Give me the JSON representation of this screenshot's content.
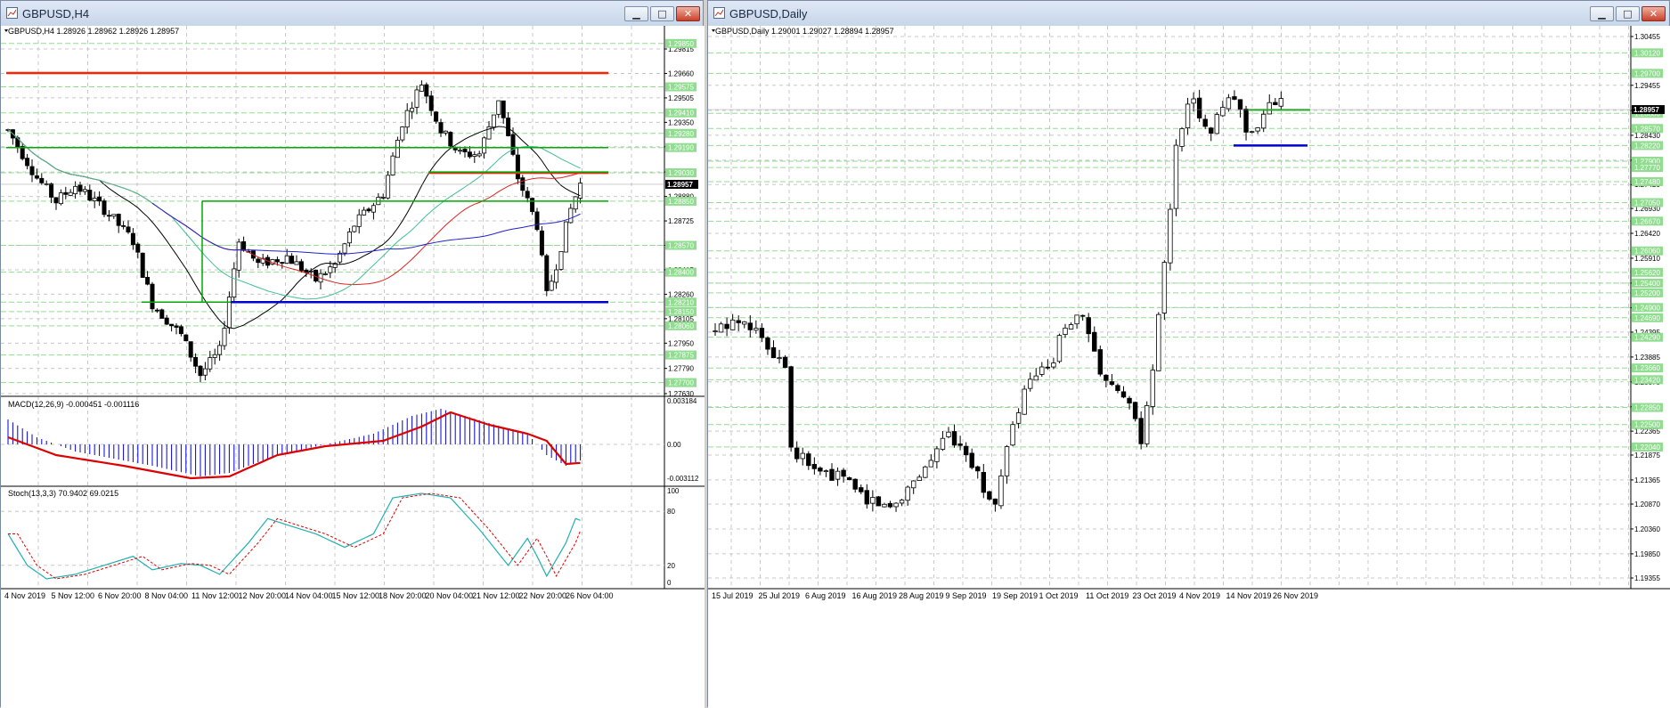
{
  "colors": {
    "up_candle": "#ffffff",
    "down_candle": "#000000",
    "grid": "#c8c8c8",
    "level_line": "#90dd90",
    "resistance": "#ff2200",
    "support": "#0000cc",
    "green_line": "#00aa00",
    "macd_signal": "#dd0000",
    "macd_hist": "#0000dd",
    "stoch_main": "#20b0b0",
    "stoch_signal": "#dd0000"
  },
  "left": {
    "title": "GBPUSD,H4",
    "info": "GBPUSD,H4  1.28926 1.28962 1.28926 1.28957",
    "macd_label": "MACD(12,26,9) -0.000451 -0.001116",
    "stoch_label": "Stoch(13,3,3) 70.9402 69.0215",
    "current_price": "1.28957",
    "price_ticks": [
      "1.29815",
      "1.29660",
      "1.29505",
      "1.29350",
      "1.29195",
      "1.29035",
      "1.28880",
      "1.28725",
      "1.28570",
      "1.28415",
      "1.28260",
      "1.28105",
      "1.27950",
      "1.27790",
      "1.27630"
    ],
    "level_labels": [
      "1.29850",
      "1.29575",
      "1.29410",
      "1.29280",
      "1.29190",
      "1.29030",
      "1.28850",
      "1.28570",
      "1.28400",
      "1.28210",
      "1.28150",
      "1.28060",
      "1.27875",
      "1.27700"
    ],
    "macd_ticks": [
      "0.003184",
      "0.00",
      "-0.003112"
    ],
    "stoch_ticks": [
      "100",
      "80",
      "20",
      "0"
    ],
    "x_labels": [
      "4 Nov 2019",
      "5 Nov 12:00",
      "6 Nov 20:00",
      "8 Nov 04:00",
      "11 Nov 12:00",
      "12 Nov 20:00",
      "14 Nov 04:00",
      "15 Nov 12:00",
      "18 Nov 20:00",
      "20 Nov 04:00",
      "21 Nov 12:00",
      "22 Nov 20:00",
      "26 Nov 04:00"
    ]
  },
  "right": {
    "title": "GBPUSD,Daily",
    "info": "GBPUSD,Daily  1.29001 1.29027 1.28894 1.28957",
    "current_price": "1.28957",
    "price_ticks": [
      "1.30455",
      "1.29455",
      "1.28940",
      "1.28430",
      "1.27920",
      "1.27420",
      "1.26930",
      "1.26420",
      "1.25910",
      "1.25400",
      "1.24895",
      "1.24395",
      "1.23885",
      "1.23375",
      "1.22865",
      "1.22365",
      "1.21875",
      "1.21365",
      "1.20870",
      "1.20360",
      "1.19850",
      "1.19355"
    ],
    "level_labels": [
      "1.30120",
      "1.29700",
      "1.28880",
      "1.28570",
      "1.28220",
      "1.27900",
      "1.27770",
      "1.27480",
      "1.27050",
      "1.26670",
      "1.26060",
      "1.25620",
      "1.25400",
      "1.25200",
      "1.24900",
      "1.24690",
      "1.24290",
      "1.23660",
      "1.23420",
      "1.22850",
      "1.22500",
      "1.22040"
    ],
    "x_labels": [
      "15 Jul 2019",
      "25 Jul 2019",
      "6 Aug 2019",
      "16 Aug 2019",
      "28 Aug 2019",
      "9 Sep 2019",
      "19 Sep 2019",
      "1 Oct 2019",
      "11 Oct 2019",
      "23 Oct 2019",
      "4 Nov 2019",
      "14 Nov 2019",
      "26 Nov 2019"
    ]
  }
}
